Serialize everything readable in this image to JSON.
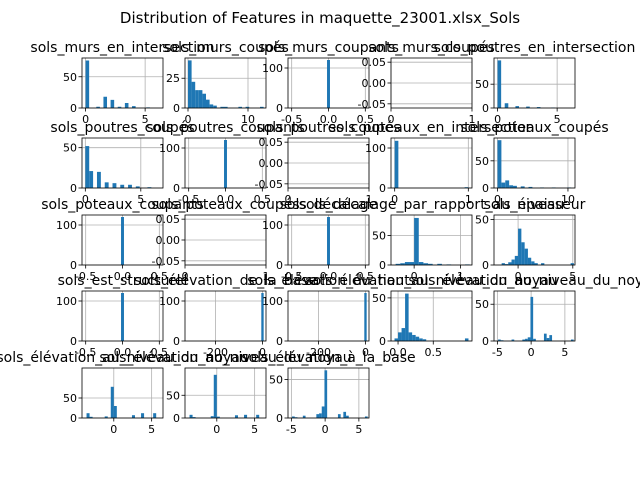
{
  "colors": {
    "bar": "#1f77b4",
    "grid": "#b0b0b0",
    "frame": "#000000",
    "background": "#ffffff"
  },
  "chart_data": {
    "type": "bar",
    "title": "Distribution of Features in maquette_23001.xlsx_Sols",
    "grid": true,
    "layout": "5x5 grid of histograms",
    "subplots": [
      {
        "title": "sols_murs_en_intersection",
        "xticks": [
          "0",
          "5"
        ],
        "yticks": [
          "0",
          "50"
        ],
        "xlim": [
          -0.3,
          6.5
        ],
        "ylim": [
          0,
          80
        ],
        "bins": [
          [
            0,
            0.3,
            76
          ],
          [
            0.9,
            1.2,
            2
          ],
          [
            1.5,
            1.8,
            18
          ],
          [
            2.1,
            2.4,
            13
          ],
          [
            2.7,
            3.0,
            2
          ],
          [
            3.3,
            3.6,
            8
          ],
          [
            3.9,
            4.2,
            3
          ],
          [
            5.1,
            5.4,
            1
          ]
        ]
      },
      {
        "title": "sols_murs_coupés",
        "xticks": [
          "0",
          "10"
        ],
        "yticks": [
          "0",
          "25"
        ],
        "xlim": [
          -0.5,
          13
        ],
        "ylim": [
          0,
          42
        ],
        "bins": [
          [
            0,
            0.6,
            40
          ],
          [
            0.6,
            1.2,
            22
          ],
          [
            1.2,
            1.8,
            15
          ],
          [
            1.8,
            2.4,
            15
          ],
          [
            2.4,
            3.0,
            12
          ],
          [
            3.0,
            3.6,
            7
          ],
          [
            3.6,
            4.2,
            3
          ],
          [
            4.2,
            4.8,
            2
          ],
          [
            5.4,
            6.0,
            1
          ],
          [
            6.0,
            6.6,
            1
          ],
          [
            8.4,
            9.0,
            1
          ],
          [
            9.6,
            10.2,
            1
          ],
          [
            12.0,
            12.6,
            1
          ]
        ]
      },
      {
        "title": "sols_murs_coupants",
        "xticks": [
          "-0.5",
          "0.0",
          "0.5"
        ],
        "yticks": [
          "0",
          "100"
        ],
        "xlim": [
          -0.55,
          0.55
        ],
        "ylim": [
          0,
          125
        ],
        "bins": [
          [
            -0.02,
            0.02,
            120
          ]
        ]
      },
      {
        "title": "sols_murs_coupés",
        "xticks": [
          "0",
          "1"
        ],
        "yticks": [
          "-0.05",
          "0.00",
          "0.05"
        ],
        "xlim": [
          0,
          1
        ],
        "ylim": [
          -0.06,
          0.06
        ],
        "bins": []
      },
      {
        "title": "sols_poutres_en_intersection",
        "xticks": [
          "0",
          "5"
        ],
        "yticks": [
          "0",
          "50"
        ],
        "xlim": [
          -0.3,
          6.5
        ],
        "ylim": [
          0,
          105
        ],
        "bins": [
          [
            0,
            0.3,
            100
          ],
          [
            0.6,
            0.9,
            10
          ],
          [
            1.5,
            1.8,
            4
          ],
          [
            2.4,
            2.7,
            3
          ],
          [
            3.3,
            3.6,
            2
          ],
          [
            4.5,
            4.8,
            1
          ]
        ]
      },
      {
        "title": "sols_poutres_coupés",
        "xticks": [
          "0",
          "5"
        ],
        "yticks": [
          "0",
          "50"
        ],
        "xlim": [
          -0.3,
          7
        ],
        "ylim": [
          0,
          62
        ],
        "bins": [
          [
            0,
            0.35,
            52
          ],
          [
            0.35,
            0.7,
            21
          ],
          [
            1.05,
            1.4,
            20
          ],
          [
            1.75,
            2.1,
            7
          ],
          [
            2.45,
            2.8,
            6
          ],
          [
            3.15,
            3.5,
            4
          ],
          [
            3.85,
            4.2,
            4
          ],
          [
            4.55,
            4.9,
            2
          ],
          [
            5.6,
            5.95,
            1
          ]
        ]
      },
      {
        "title": "sols_poutres_coupants",
        "xticks": [
          "-0.5",
          "0.0",
          "0.5"
        ],
        "yticks": [
          "0",
          "100"
        ],
        "xlim": [
          -0.55,
          0.55
        ],
        "ylim": [
          0,
          125
        ],
        "bins": [
          [
            -0.02,
            0.02,
            120
          ]
        ]
      },
      {
        "title": "sols_poutres_coupés",
        "xticks": [
          "0",
          "1"
        ],
        "yticks": [
          "-0.05",
          "0.00",
          "0.05"
        ],
        "xlim": [
          0,
          1
        ],
        "ylim": [
          -0.06,
          0.06
        ],
        "bins": []
      },
      {
        "title": "sols_poteaux_en_intersection",
        "xticks": [
          "0",
          "1"
        ],
        "yticks": [
          "0",
          "100"
        ],
        "xlim": [
          -0.05,
          1.05
        ],
        "ylim": [
          0,
          125
        ],
        "bins": [
          [
            0,
            0.05,
            118
          ],
          [
            0.95,
            1.0,
            2
          ]
        ]
      },
      {
        "title": "sols_poteaux_coupés",
        "xticks": [
          "0",
          "10"
        ],
        "yticks": [
          "0",
          "50"
        ],
        "xlim": [
          -0.5,
          11
        ],
        "ylim": [
          0,
          92
        ],
        "bins": [
          [
            0,
            0.55,
            88
          ],
          [
            0.55,
            1.1,
            10
          ],
          [
            1.1,
            1.65,
            14
          ],
          [
            1.65,
            2.2,
            5
          ],
          [
            2.2,
            2.75,
            4
          ],
          [
            3.3,
            3.85,
            3
          ],
          [
            4.4,
            4.95,
            2
          ],
          [
            6.05,
            6.6,
            1
          ],
          [
            7.7,
            8.25,
            1
          ],
          [
            9.9,
            10.45,
            1
          ]
        ]
      },
      {
        "title": "sols_poteaux_coupants",
        "xticks": [
          "-0.5",
          "0.0",
          "0.5"
        ],
        "yticks": [
          "0",
          "100"
        ],
        "xlim": [
          -0.55,
          0.55
        ],
        "ylim": [
          0,
          125
        ],
        "bins": [
          [
            -0.02,
            0.02,
            120
          ]
        ]
      },
      {
        "title": "sols_poteaux_coupés",
        "xticks": [
          "0",
          "1"
        ],
        "yticks": [
          "-0.05",
          "0.00",
          "0.05"
        ],
        "xlim": [
          0,
          1
        ],
        "ylim": [
          -0.06,
          0.06
        ],
        "bins": []
      },
      {
        "title": "sols_décalage",
        "xticks": [
          "-0.5",
          "0.0",
          "0.5"
        ],
        "yticks": [
          "0",
          "100"
        ],
        "xlim": [
          -0.55,
          0.55
        ],
        "ylim": [
          0,
          125
        ],
        "bins": [
          [
            -0.02,
            0.02,
            120
          ]
        ]
      },
      {
        "title": "sols_décalage_par_rapport_au_niveau",
        "xticks": [
          "0",
          "1"
        ],
        "yticks": [
          "0",
          "50"
        ],
        "xlim": [
          -0.5,
          1.25
        ],
        "ylim": [
          0,
          85
        ],
        "bins": [
          [
            -0.4,
            -0.3,
            2
          ],
          [
            -0.3,
            -0.2,
            3
          ],
          [
            -0.2,
            -0.1,
            5
          ],
          [
            -0.1,
            0.0,
            5
          ],
          [
            0.0,
            0.1,
            80
          ],
          [
            0.1,
            0.2,
            5
          ],
          [
            0.2,
            0.3,
            3
          ],
          [
            0.3,
            0.4,
            2
          ],
          [
            0.5,
            0.6,
            2
          ],
          [
            0.7,
            0.8,
            1
          ],
          [
            1.1,
            1.2,
            1
          ]
        ]
      },
      {
        "title": "sols_épaisseur",
        "xticks": [
          "0",
          "5"
        ],
        "yticks": [
          "0",
          "50"
        ],
        "xlim": [
          -2.2,
          5.2
        ],
        "ylim": [
          0,
          55
        ],
        "bins": [
          [
            -1.5,
            -1.2,
            2
          ],
          [
            -1.2,
            -0.9,
            1
          ],
          [
            -0.9,
            -0.6,
            3
          ],
          [
            -0.6,
            -0.3,
            6
          ],
          [
            -0.3,
            0.0,
            10
          ],
          [
            0.0,
            0.3,
            40
          ],
          [
            0.3,
            0.6,
            25
          ],
          [
            0.6,
            0.9,
            18
          ],
          [
            0.9,
            1.2,
            8
          ],
          [
            1.2,
            1.5,
            4
          ],
          [
            1.5,
            1.8,
            2
          ],
          [
            2.1,
            2.4,
            2
          ],
          [
            4.8,
            5.1,
            2
          ]
        ]
      },
      {
        "title": "sols_est_structurel",
        "xticks": [
          "-0.5",
          "0.0",
          "0.5"
        ],
        "yticks": [
          "0",
          "100"
        ],
        "xlim": [
          -0.55,
          0.55
        ],
        "ylim": [
          0,
          125
        ],
        "bins": [
          [
            -0.02,
            0.02,
            120
          ]
        ]
      },
      {
        "title": "sols_élévation_de_la_base",
        "xticks": [
          "-200",
          "0"
        ],
        "yticks": [
          "0",
          "100"
        ],
        "xlim": [
          -330,
          15
        ],
        "ylim": [
          0,
          125
        ],
        "bins": [
          [
            -5,
            5,
            120
          ]
        ]
      },
      {
        "title": "sols_élévation_du_haut",
        "xticks": [
          "-200",
          "0"
        ],
        "yticks": [
          "0",
          "100"
        ],
        "xlim": [
          -330,
          15
        ],
        "ylim": [
          0,
          125
        ],
        "bins": [
          [
            -5,
            5,
            120
          ]
        ]
      },
      {
        "title": "sols_élévation_au_niveau_du_noyau",
        "xticks": [
          "0.0",
          "0.5"
        ],
        "yticks": [
          "0",
          "50"
        ],
        "xlim": [
          -0.1,
          1.05
        ],
        "ylim": [
          0,
          58
        ],
        "bins": [
          [
            -0.05,
            0.0,
            3
          ],
          [
            0.0,
            0.05,
            10
          ],
          [
            0.05,
            0.1,
            15
          ],
          [
            0.1,
            0.15,
            55
          ],
          [
            0.15,
            0.2,
            10
          ],
          [
            0.2,
            0.25,
            7
          ],
          [
            0.25,
            0.3,
            5
          ],
          [
            0.3,
            0.35,
            3
          ],
          [
            0.35,
            0.4,
            2
          ],
          [
            0.95,
            1.0,
            3
          ]
        ]
      },
      {
        "title": "sols_élévation_au_niveau_du_noyau",
        "xticks": [
          "-5",
          "0",
          "5"
        ],
        "yticks": [
          "0",
          "50"
        ],
        "xlim": [
          -5.5,
          6.5
        ],
        "ylim": [
          0,
          68
        ],
        "bins": [
          [
            -4.9,
            -4.5,
            2
          ],
          [
            -4.5,
            -4.1,
            1
          ],
          [
            -2.9,
            -2.5,
            2
          ],
          [
            -1.3,
            -0.9,
            2
          ],
          [
            -0.9,
            -0.5,
            3
          ],
          [
            -0.5,
            -0.1,
            5
          ],
          [
            -0.1,
            0.3,
            60
          ],
          [
            0.3,
            0.7,
            3
          ],
          [
            1.9,
            2.3,
            10
          ],
          [
            2.3,
            2.7,
            4
          ],
          [
            2.7,
            3.1,
            8
          ],
          [
            5.9,
            6.3,
            2
          ]
        ]
      },
      {
        "title": "sols_élévation_au_niveau_du_noyau",
        "xticks": [
          "0",
          "5"
        ],
        "yticks": [
          "0",
          "50"
        ],
        "xlim": [
          -4.2,
          6.5
        ],
        "ylim": [
          0,
          125
        ],
        "bins": [
          [
            -3.6,
            -3.2,
            12
          ],
          [
            -3.2,
            -2.8,
            3
          ],
          [
            -1.2,
            -0.8,
            4
          ],
          [
            -0.4,
            0.0,
            78
          ],
          [
            0.0,
            0.4,
            30
          ],
          [
            2.4,
            2.8,
            7
          ],
          [
            3.6,
            4.0,
            12
          ],
          [
            5.2,
            5.6,
            12
          ]
        ]
      },
      {
        "title": "sols_élévation_au_niveau_du_noyau",
        "xticks": [
          "0",
          "5"
        ],
        "yticks": [
          "0",
          "50"
        ],
        "xlim": [
          -4.2,
          6.5
        ],
        "ylim": [
          0,
          110
        ],
        "bins": [
          [
            -3.6,
            -3.2,
            7
          ],
          [
            -3.2,
            -2.8,
            2
          ],
          [
            -0.8,
            -0.4,
            4
          ],
          [
            -0.4,
            0.0,
            95
          ],
          [
            0.0,
            0.4,
            3
          ],
          [
            2.4,
            2.8,
            6
          ],
          [
            3.6,
            4.0,
            7
          ],
          [
            5.2,
            5.6,
            7
          ]
        ]
      },
      {
        "title": "sols_élévation_à_la_base",
        "xticks": [
          "-5",
          "0",
          "5"
        ],
        "yticks": [
          "0",
          "50"
        ],
        "xlim": [
          -5.5,
          6.5
        ],
        "ylim": [
          0,
          65
        ],
        "bins": [
          [
            -4.9,
            -4.5,
            2
          ],
          [
            -4.5,
            -4.1,
            1
          ],
          [
            -3.3,
            -2.9,
            3
          ],
          [
            -1.3,
            -0.9,
            5
          ],
          [
            -0.9,
            -0.5,
            6
          ],
          [
            -0.5,
            -0.1,
            15
          ],
          [
            -0.1,
            0.3,
            62
          ],
          [
            1.9,
            2.3,
            5
          ],
          [
            2.7,
            3.1,
            8
          ],
          [
            3.1,
            3.5,
            3
          ],
          [
            5.9,
            6.3,
            2
          ]
        ]
      }
    ]
  }
}
